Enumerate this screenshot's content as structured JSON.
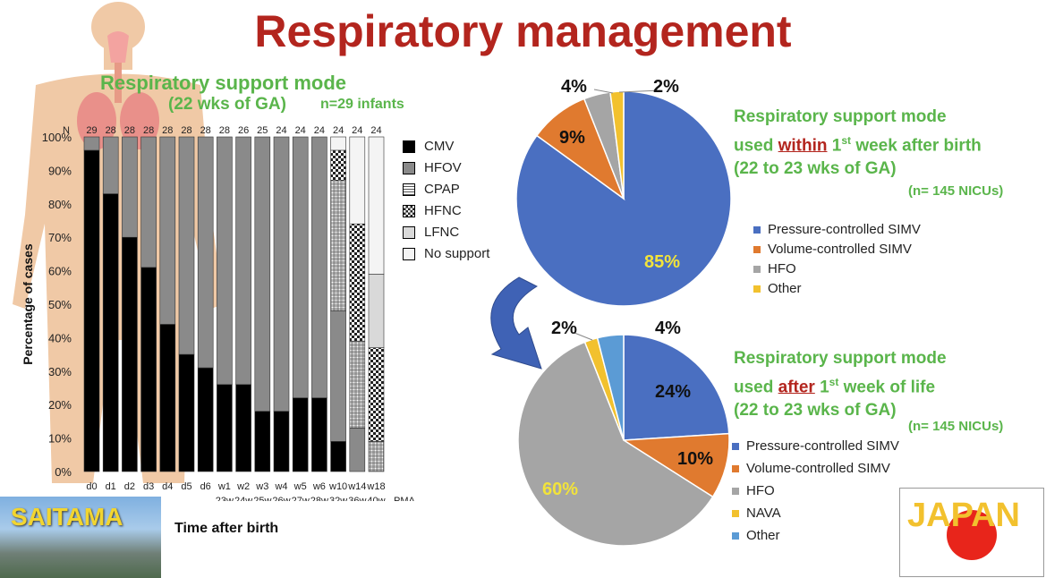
{
  "title": "Respiratory management",
  "chart_data": [
    {
      "type": "bar",
      "stacked": true,
      "title": "Respiratory support mode",
      "subtitle": "(22 wks of GA)",
      "n_note": "n=29 infants",
      "ylabel": "Percentage of cases",
      "xlabel": "Time after birth",
      "ylim": [
        0,
        100
      ],
      "yticks": [
        "0%",
        "10%",
        "20%",
        "30%",
        "40%",
        "50%",
        "60%",
        "70%",
        "80%",
        "90%",
        "100%"
      ],
      "n_label": "N",
      "n_values": [
        29,
        28,
        28,
        28,
        28,
        28,
        28,
        28,
        26,
        25,
        24,
        24,
        24,
        24,
        24,
        24
      ],
      "categories": [
        "d0",
        "d1",
        "d2",
        "d3",
        "d4",
        "d5",
        "d6",
        "w1",
        "w2",
        "w3",
        "w4",
        "w5",
        "w6",
        "w10",
        "w14",
        "w18"
      ],
      "pma_label": "PMA",
      "pma_values": [
        "23w",
        "24w",
        "25w",
        "26w",
        "27w",
        "28w",
        "32w",
        "36w",
        "40w"
      ],
      "series": [
        {
          "name": "CMV",
          "values": [
            96,
            83,
            70,
            61,
            44,
            35,
            31,
            26,
            26,
            18,
            18,
            22,
            22,
            9,
            0,
            0
          ]
        },
        {
          "name": "HFOV",
          "values": [
            4,
            17,
            30,
            39,
            56,
            65,
            69,
            74,
            74,
            82,
            82,
            78,
            78,
            39,
            13,
            0
          ]
        },
        {
          "name": "CPAP",
          "values": [
            0,
            0,
            0,
            0,
            0,
            0,
            0,
            0,
            0,
            0,
            0,
            0,
            0,
            39,
            26,
            9
          ]
        },
        {
          "name": "HFNC",
          "values": [
            0,
            0,
            0,
            0,
            0,
            0,
            0,
            0,
            0,
            0,
            0,
            0,
            0,
            9,
            35,
            28
          ]
        },
        {
          "name": "LFNC",
          "values": [
            0,
            0,
            0,
            0,
            0,
            0,
            0,
            0,
            0,
            0,
            0,
            0,
            0,
            0,
            0,
            22
          ]
        },
        {
          "name": "No support",
          "values": [
            0,
            0,
            0,
            0,
            0,
            0,
            0,
            0,
            0,
            0,
            0,
            0,
            0,
            4,
            26,
            41
          ]
        }
      ]
    },
    {
      "type": "pie",
      "heading_pre": "Respiratory support mode",
      "heading_mid_pre": "used ",
      "heading_em": "within",
      "heading_post1": " 1",
      "heading_sup": "st",
      "heading_post2": " week after birth",
      "heading_range": "(22 to 23 wks of GA)",
      "n_note": "(n= 145 NICUs)",
      "slices": [
        {
          "name": "Pressure-controlled SIMV",
          "value": 85,
          "label": "85%",
          "color": "#4a6fc1"
        },
        {
          "name": "Volume-controlled SIMV",
          "value": 9,
          "label": "9%",
          "color": "#e07a2f"
        },
        {
          "name": "HFO",
          "value": 4,
          "label": "4%",
          "color": "#a5a5a5"
        },
        {
          "name": "Other",
          "value": 2,
          "label": "2%",
          "color": "#f2c12e"
        }
      ]
    },
    {
      "type": "pie",
      "heading_pre": "Respiratory support mode",
      "heading_mid_pre": "used ",
      "heading_em": "after",
      "heading_post1": " 1",
      "heading_sup": "st",
      "heading_post2": " week of life",
      "heading_range": "(22 to 23 wks of GA)",
      "n_note": "(n= 145 NICUs)",
      "slices": [
        {
          "name": "Pressure-controlled SIMV",
          "value": 24,
          "label": "24%",
          "color": "#4a6fc1"
        },
        {
          "name": "Volume-controlled SIMV",
          "value": 10,
          "label": "10%",
          "color": "#e07a2f"
        },
        {
          "name": "HFO",
          "value": 60,
          "label": "60%",
          "color": "#a5a5a5"
        },
        {
          "name": "NAVA",
          "value": 2,
          "label": "2%",
          "color": "#f2c12e"
        },
        {
          "name": "Other",
          "value": 4,
          "label": "4%",
          "color": "#5b9bd5"
        }
      ]
    }
  ],
  "saitama": {
    "label": "SAITAMA"
  },
  "japan": {
    "label": "JAPAN"
  }
}
